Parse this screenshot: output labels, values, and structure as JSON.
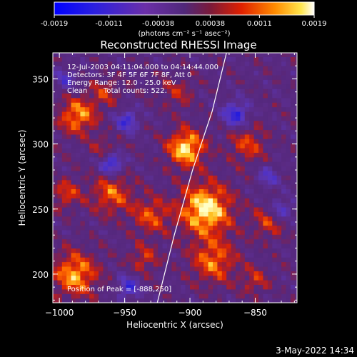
{
  "colorbar": {
    "tick_labels": [
      "-0.0019",
      "-0.0011",
      "-0.00038",
      "0.00038",
      "0.0011",
      "0.0019"
    ],
    "tick_values": [
      -0.0019,
      -0.0011,
      -0.00038,
      0.00038,
      0.0011,
      0.0019
    ],
    "range": [
      -0.0019,
      0.0019
    ],
    "unit_label": "(photons cm⁻² s⁻¹ asec⁻²)"
  },
  "title": "Reconstructed RHESSI Image",
  "info": {
    "line1": "12-Jul-2003 04:11:04.000 to 04:14:44.000",
    "line2": "Detectors: 3F 4F 5F 6F 7F 8F, Att 0",
    "line3": "Energy Range: 12.0 - 25.0 keV",
    "line4_label": "Clean",
    "line4_counts": "Total counts: 522."
  },
  "peak_text": "Position of Peak = [-888,250]",
  "footer_date": "3-May-2022 14:34",
  "colors": {
    "background": "#000000",
    "foreground": "#ffffff",
    "negative": "#1a1ae6",
    "mid_negative": "#6a3fa8",
    "background_field": "#5a2d82",
    "positive": "#ff5a00",
    "peak": "#ffffcc"
  },
  "chart_data": {
    "type": "heatmap",
    "xlabel": "Heliocentric X (arcsec)",
    "ylabel": "Heliocentric Y (arcsec)",
    "xlim": [
      -1005,
      -818
    ],
    "ylim": [
      178,
      370
    ],
    "x_ticks": [
      -1000,
      -950,
      -900,
      -850
    ],
    "x_tick_labels": [
      "−1000",
      "−950",
      "−900",
      "−850"
    ],
    "y_ticks": [
      200,
      250,
      300,
      350
    ],
    "y_tick_labels": [
      "200",
      "250",
      "300",
      "350"
    ],
    "limb_curve": [
      [
        -925,
        178
      ],
      [
        -912,
        230
      ],
      [
        -898,
        280
      ],
      [
        -883,
        325
      ],
      [
        -872,
        370
      ]
    ],
    "peak_position": [
      -888,
      250
    ],
    "sources": [
      {
        "x": -888,
        "y": 250,
        "intensity": 1.0,
        "radius": 14
      },
      {
        "x": -903,
        "y": 297,
        "intensity": 0.95,
        "radius": 10
      },
      {
        "x": -986,
        "y": 322,
        "intensity": 0.75,
        "radius": 10
      },
      {
        "x": -988,
        "y": 200,
        "intensity": 0.8,
        "radius": 12
      },
      {
        "x": -882,
        "y": 210,
        "intensity": 0.65,
        "radius": 12
      },
      {
        "x": -960,
        "y": 262,
        "intensity": 0.6,
        "radius": 11
      },
      {
        "x": -930,
        "y": 245,
        "intensity": 0.55,
        "radius": 10
      },
      {
        "x": -856,
        "y": 300,
        "intensity": 0.5,
        "radius": 10
      },
      {
        "x": -840,
        "y": 240,
        "intensity": 0.45,
        "radius": 9
      },
      {
        "x": -965,
        "y": 340,
        "intensity": 0.4,
        "radius": 8
      },
      {
        "x": -910,
        "y": 340,
        "intensity": 0.35,
        "radius": 9
      },
      {
        "x": -995,
        "y": 262,
        "intensity": 0.5,
        "radius": 8
      },
      {
        "x": -935,
        "y": 212,
        "intensity": 0.45,
        "radius": 8
      },
      {
        "x": -850,
        "y": 195,
        "intensity": 0.4,
        "radius": 8
      },
      {
        "x": -965,
        "y": 297,
        "intensity": 0.35,
        "radius": 7
      }
    ],
    "negative_patches": [
      {
        "x": -960,
        "y": 285,
        "intensity": -0.9,
        "radius": 6
      },
      {
        "x": -948,
        "y": 318,
        "intensity": -0.7,
        "radius": 6
      },
      {
        "x": -865,
        "y": 323,
        "intensity": -0.8,
        "radius": 7
      },
      {
        "x": -947,
        "y": 190,
        "intensity": -0.7,
        "radius": 6
      },
      {
        "x": -830,
        "y": 250,
        "intensity": -0.6,
        "radius": 6
      },
      {
        "x": -995,
        "y": 350,
        "intensity": -0.5,
        "radius": 6
      },
      {
        "x": -840,
        "y": 275,
        "intensity": -0.5,
        "radius": 6
      }
    ]
  }
}
